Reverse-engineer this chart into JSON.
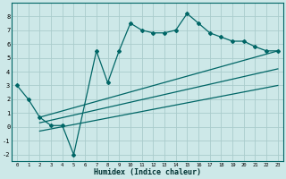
{
  "xlabel": "Humidex (Indice chaleur)",
  "bg_color": "#cde8e8",
  "grid_color": "#aacccc",
  "line_color": "#006666",
  "xlim": [
    -0.5,
    23.5
  ],
  "ylim": [
    -2.5,
    9.0
  ],
  "yticks": [
    -2,
    -1,
    0,
    1,
    2,
    3,
    4,
    5,
    6,
    7,
    8
  ],
  "xticks": [
    0,
    1,
    2,
    3,
    4,
    5,
    6,
    7,
    8,
    9,
    10,
    11,
    12,
    13,
    14,
    15,
    16,
    17,
    18,
    19,
    20,
    21,
    22,
    23
  ],
  "curve1_x": [
    0,
    1,
    2,
    3,
    4,
    5,
    7,
    8,
    9,
    10,
    11,
    12,
    13,
    14,
    15,
    16,
    17,
    18,
    19,
    20,
    21,
    22,
    23
  ],
  "curve1_y": [
    3.0,
    2.0,
    0.7,
    0.1,
    0.1,
    -2.0,
    5.5,
    3.2,
    5.5,
    7.5,
    7.0,
    6.8,
    6.8,
    7.0,
    8.2,
    7.5,
    6.8,
    6.5,
    6.2,
    6.2,
    5.8,
    5.5,
    5.5
  ],
  "line2_x": [
    2,
    23
  ],
  "line2_y": [
    0.7,
    5.5
  ],
  "line3_x": [
    2,
    23
  ],
  "line3_y": [
    0.3,
    4.2
  ],
  "line4_x": [
    2,
    23
  ],
  "line4_y": [
    -0.3,
    3.0
  ]
}
